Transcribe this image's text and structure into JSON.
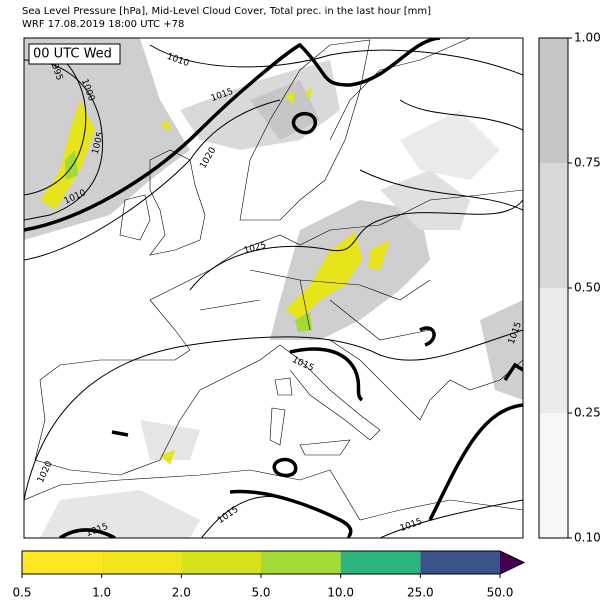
{
  "header": {
    "title": "Sea Level Pressure [hPa], Mid-Level Cloud Cover, Total prec. in the last hour [mm]",
    "subtitle": "WRF 17.08.2019 18:00 UTC +78"
  },
  "map": {
    "time_label": "00 UTC Wed",
    "contour_labels": [
      "1010",
      "995",
      "1000",
      "1005",
      "1010",
      "1015",
      "1020",
      "1025",
      "1015",
      "1015",
      "1020",
      "1015",
      "1015",
      "1015"
    ]
  },
  "cloud_colorbar": {
    "ticks": [
      "0.10",
      "0.25",
      "0.50",
      "0.75",
      "1.00"
    ],
    "colors": [
      "#f7f7f7",
      "#ebebeb",
      "#d9d9d9",
      "#c6c6c6"
    ]
  },
  "precip_colorbar": {
    "ticks": [
      "0.5",
      "1.0",
      "2.0",
      "5.0",
      "10.0",
      "25.0",
      "50.0"
    ],
    "colors": [
      "#fde725",
      "#f0e51c",
      "#d4e11b",
      "#a2da37",
      "#2fb47c",
      "#3b528b"
    ],
    "extend_color": "#440154"
  }
}
